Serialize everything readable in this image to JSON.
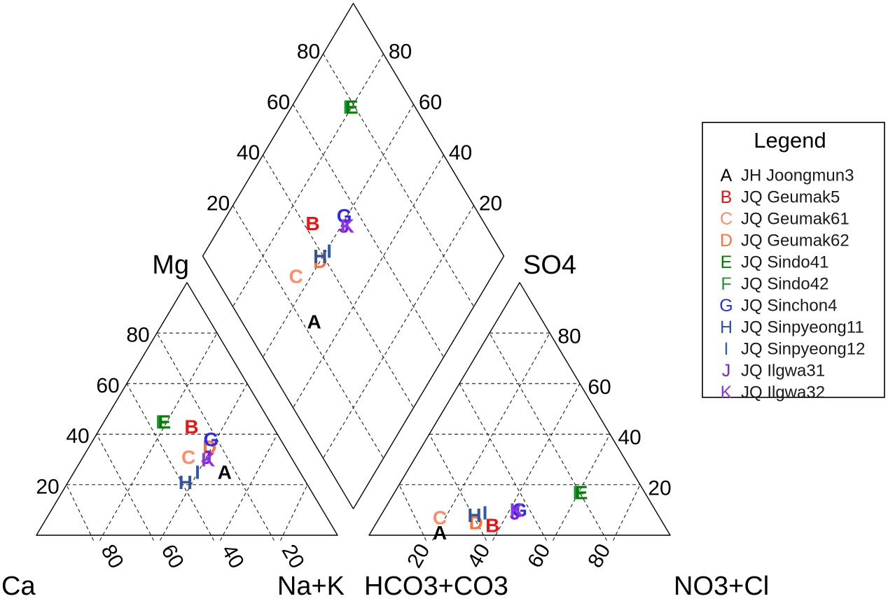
{
  "figure": {
    "kind": "piper-trilinear-diagram",
    "background": "#ffffff"
  },
  "chart_data": {
    "type": "piper",
    "axes": {
      "cation_triangle": {
        "bottom_left_label": "Ca",
        "top_label": "Mg",
        "bottom_right_label": "Na+K",
        "bottom_tick_labels": [
          80,
          60,
          40,
          20
        ],
        "left_edge_tick_labels": [
          80,
          60,
          40,
          20
        ],
        "grid_ticks": [
          20,
          40,
          60,
          80
        ]
      },
      "anion_triangle": {
        "bottom_left_label": "HCO3+CO3",
        "top_label": "SO4",
        "bottom_right_label": "NO3+Cl",
        "bottom_tick_labels": [
          20,
          40,
          60,
          80
        ],
        "right_edge_tick_labels": [
          80,
          60,
          40,
          20
        ],
        "grid_ticks": [
          20,
          40,
          60,
          80
        ]
      },
      "diamond": {
        "upper_left_tick_labels": [
          80,
          60,
          40,
          20
        ],
        "upper_right_tick_labels": [
          80,
          60,
          40,
          20
        ],
        "grid_ticks": [
          20,
          40,
          60,
          80
        ]
      }
    },
    "legend": {
      "title": "Legend"
    },
    "samples": [
      {
        "letter": "A",
        "name": "JH Joongmun3",
        "color": "#000000",
        "cation": {
          "ca": 25,
          "mg": 25,
          "na_k": 50
        },
        "anion": {
          "hco3_co3": 76,
          "so4": 1,
          "no3_cl": 23
        }
      },
      {
        "letter": "B",
        "name": "JQ Geumak5",
        "color": "#EE1111",
        "cation": {
          "ca": 27,
          "mg": 43,
          "na_k": 30
        },
        "anion": {
          "hco3_co3": 57,
          "so4": 4,
          "no3_cl": 39
        }
      },
      {
        "letter": "C",
        "name": "JQ Geumak61",
        "color": "#FF8C69",
        "cation": {
          "ca": 34,
          "mg": 31,
          "na_k": 35
        },
        "anion": {
          "hco3_co3": 73,
          "so4": 7,
          "no3_cl": 20
        }
      },
      {
        "letter": "D",
        "name": "JQ Geumak62",
        "color": "#FF7034",
        "cation": {
          "ca": 25,
          "mg": 35,
          "na_k": 40
        },
        "anion": {
          "hco3_co3": 62,
          "so4": 5,
          "no3_cl": 33
        }
      },
      {
        "letter": "F",
        "name": "JQ Sindo42",
        "color": "#1F9632",
        "cation": {
          "ca": 35,
          "mg": 45,
          "na_k": 20
        },
        "anion": {
          "hco3_co3": 21,
          "so4": 17,
          "no3_cl": 62
        }
      },
      {
        "letter": "E",
        "name": "JQ Sindo41",
        "color": "#008000",
        "cation": {
          "ca": 35,
          "mg": 45,
          "na_k": 20
        },
        "anion": {
          "hco3_co3": 21,
          "so4": 17,
          "no3_cl": 62
        }
      },
      {
        "letter": "G",
        "name": "JQ Sinchon4",
        "color": "#2B2BEF",
        "cation": {
          "ca": 23,
          "mg": 38,
          "na_k": 39
        },
        "anion": {
          "hco3_co3": 45,
          "so4": 10,
          "no3_cl": 45
        }
      },
      {
        "letter": "H",
        "name": "JQ Sinpyeong11",
        "color": "#33549E",
        "cation": {
          "ca": 40,
          "mg": 21,
          "na_k": 39
        },
        "anion": {
          "hco3_co3": 61,
          "so4": 8,
          "no3_cl": 31
        }
      },
      {
        "letter": "I",
        "name": "JQ Sinpyeong12",
        "color": "#2F5BA8",
        "cation": {
          "ca": 34,
          "mg": 25,
          "na_k": 41
        },
        "anion": {
          "hco3_co3": 57,
          "so4": 9,
          "no3_cl": 34
        }
      },
      {
        "letter": "J",
        "name": "JQ Ilgwa31",
        "color": "#7B1FD6",
        "cation": {
          "ca": 28,
          "mg": 31,
          "na_k": 41
        },
        "anion": {
          "hco3_co3": 47,
          "so4": 9,
          "no3_cl": 44
        }
      },
      {
        "letter": "K",
        "name": "JQ Ilgwa32",
        "color": "#8F35E8",
        "cation": {
          "ca": 28,
          "mg": 30,
          "na_k": 42
        },
        "anion": {
          "hco3_co3": 46,
          "so4": 10,
          "no3_cl": 44
        }
      }
    ],
    "legend_order": [
      "A",
      "B",
      "C",
      "D",
      "E",
      "F",
      "G",
      "H",
      "I",
      "J",
      "K"
    ]
  }
}
